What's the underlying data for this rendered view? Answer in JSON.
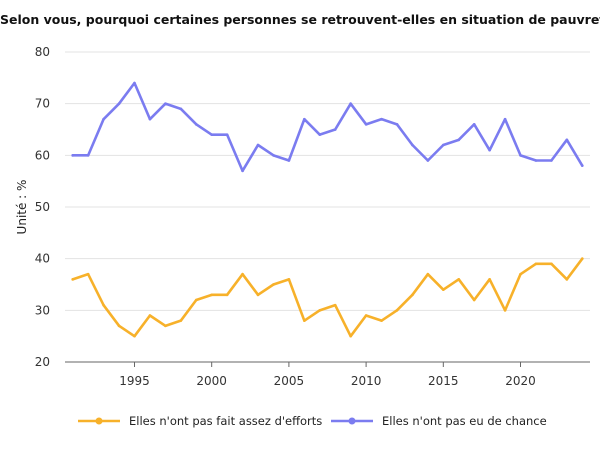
{
  "chart_data": {
    "type": "line",
    "title": "Selon vous, pourquoi certaines personnes se retrouvent-elles en situation de pauvreté ?",
    "xlabel": "",
    "ylabel": "Unité : %",
    "xlim": [
      1990.5,
      2024.5
    ],
    "ylim": [
      20,
      80
    ],
    "x_ticks": [
      1995,
      2000,
      2005,
      2010,
      2015,
      2020
    ],
    "y_ticks": [
      20,
      30,
      40,
      50,
      60,
      70,
      80
    ],
    "grid": true,
    "legend": "bottom",
    "x": [
      1991,
      1992,
      1993,
      1994,
      1995,
      1996,
      1997,
      1998,
      1999,
      2000,
      2001,
      2002,
      2003,
      2004,
      2005,
      2006,
      2007,
      2008,
      2009,
      2010,
      2011,
      2012,
      2013,
      2014,
      2015,
      2016,
      2017,
      2018,
      2019,
      2020,
      2021,
      2022,
      2023,
      2024
    ],
    "series": [
      {
        "name": "Elles n'ont pas fait assez d'efforts",
        "color": "#f7b12a",
        "values": [
          36,
          37,
          31,
          27,
          25,
          29,
          27,
          28,
          32,
          33,
          33,
          37,
          33,
          35,
          36,
          28,
          30,
          31,
          25,
          29,
          28,
          30,
          33,
          37,
          34,
          36,
          32,
          36,
          30,
          37,
          39,
          39,
          36,
          40
        ]
      },
      {
        "name": "Elles n'ont pas eu de chance",
        "color": "#7b7cf0",
        "values": [
          60,
          60,
          67,
          70,
          74,
          67,
          70,
          69,
          66,
          64,
          64,
          57,
          62,
          60,
          59,
          67,
          64,
          65,
          70,
          66,
          67,
          66,
          62,
          59,
          62,
          63,
          66,
          61,
          67,
          60,
          59,
          59,
          63,
          58
        ]
      }
    ]
  }
}
